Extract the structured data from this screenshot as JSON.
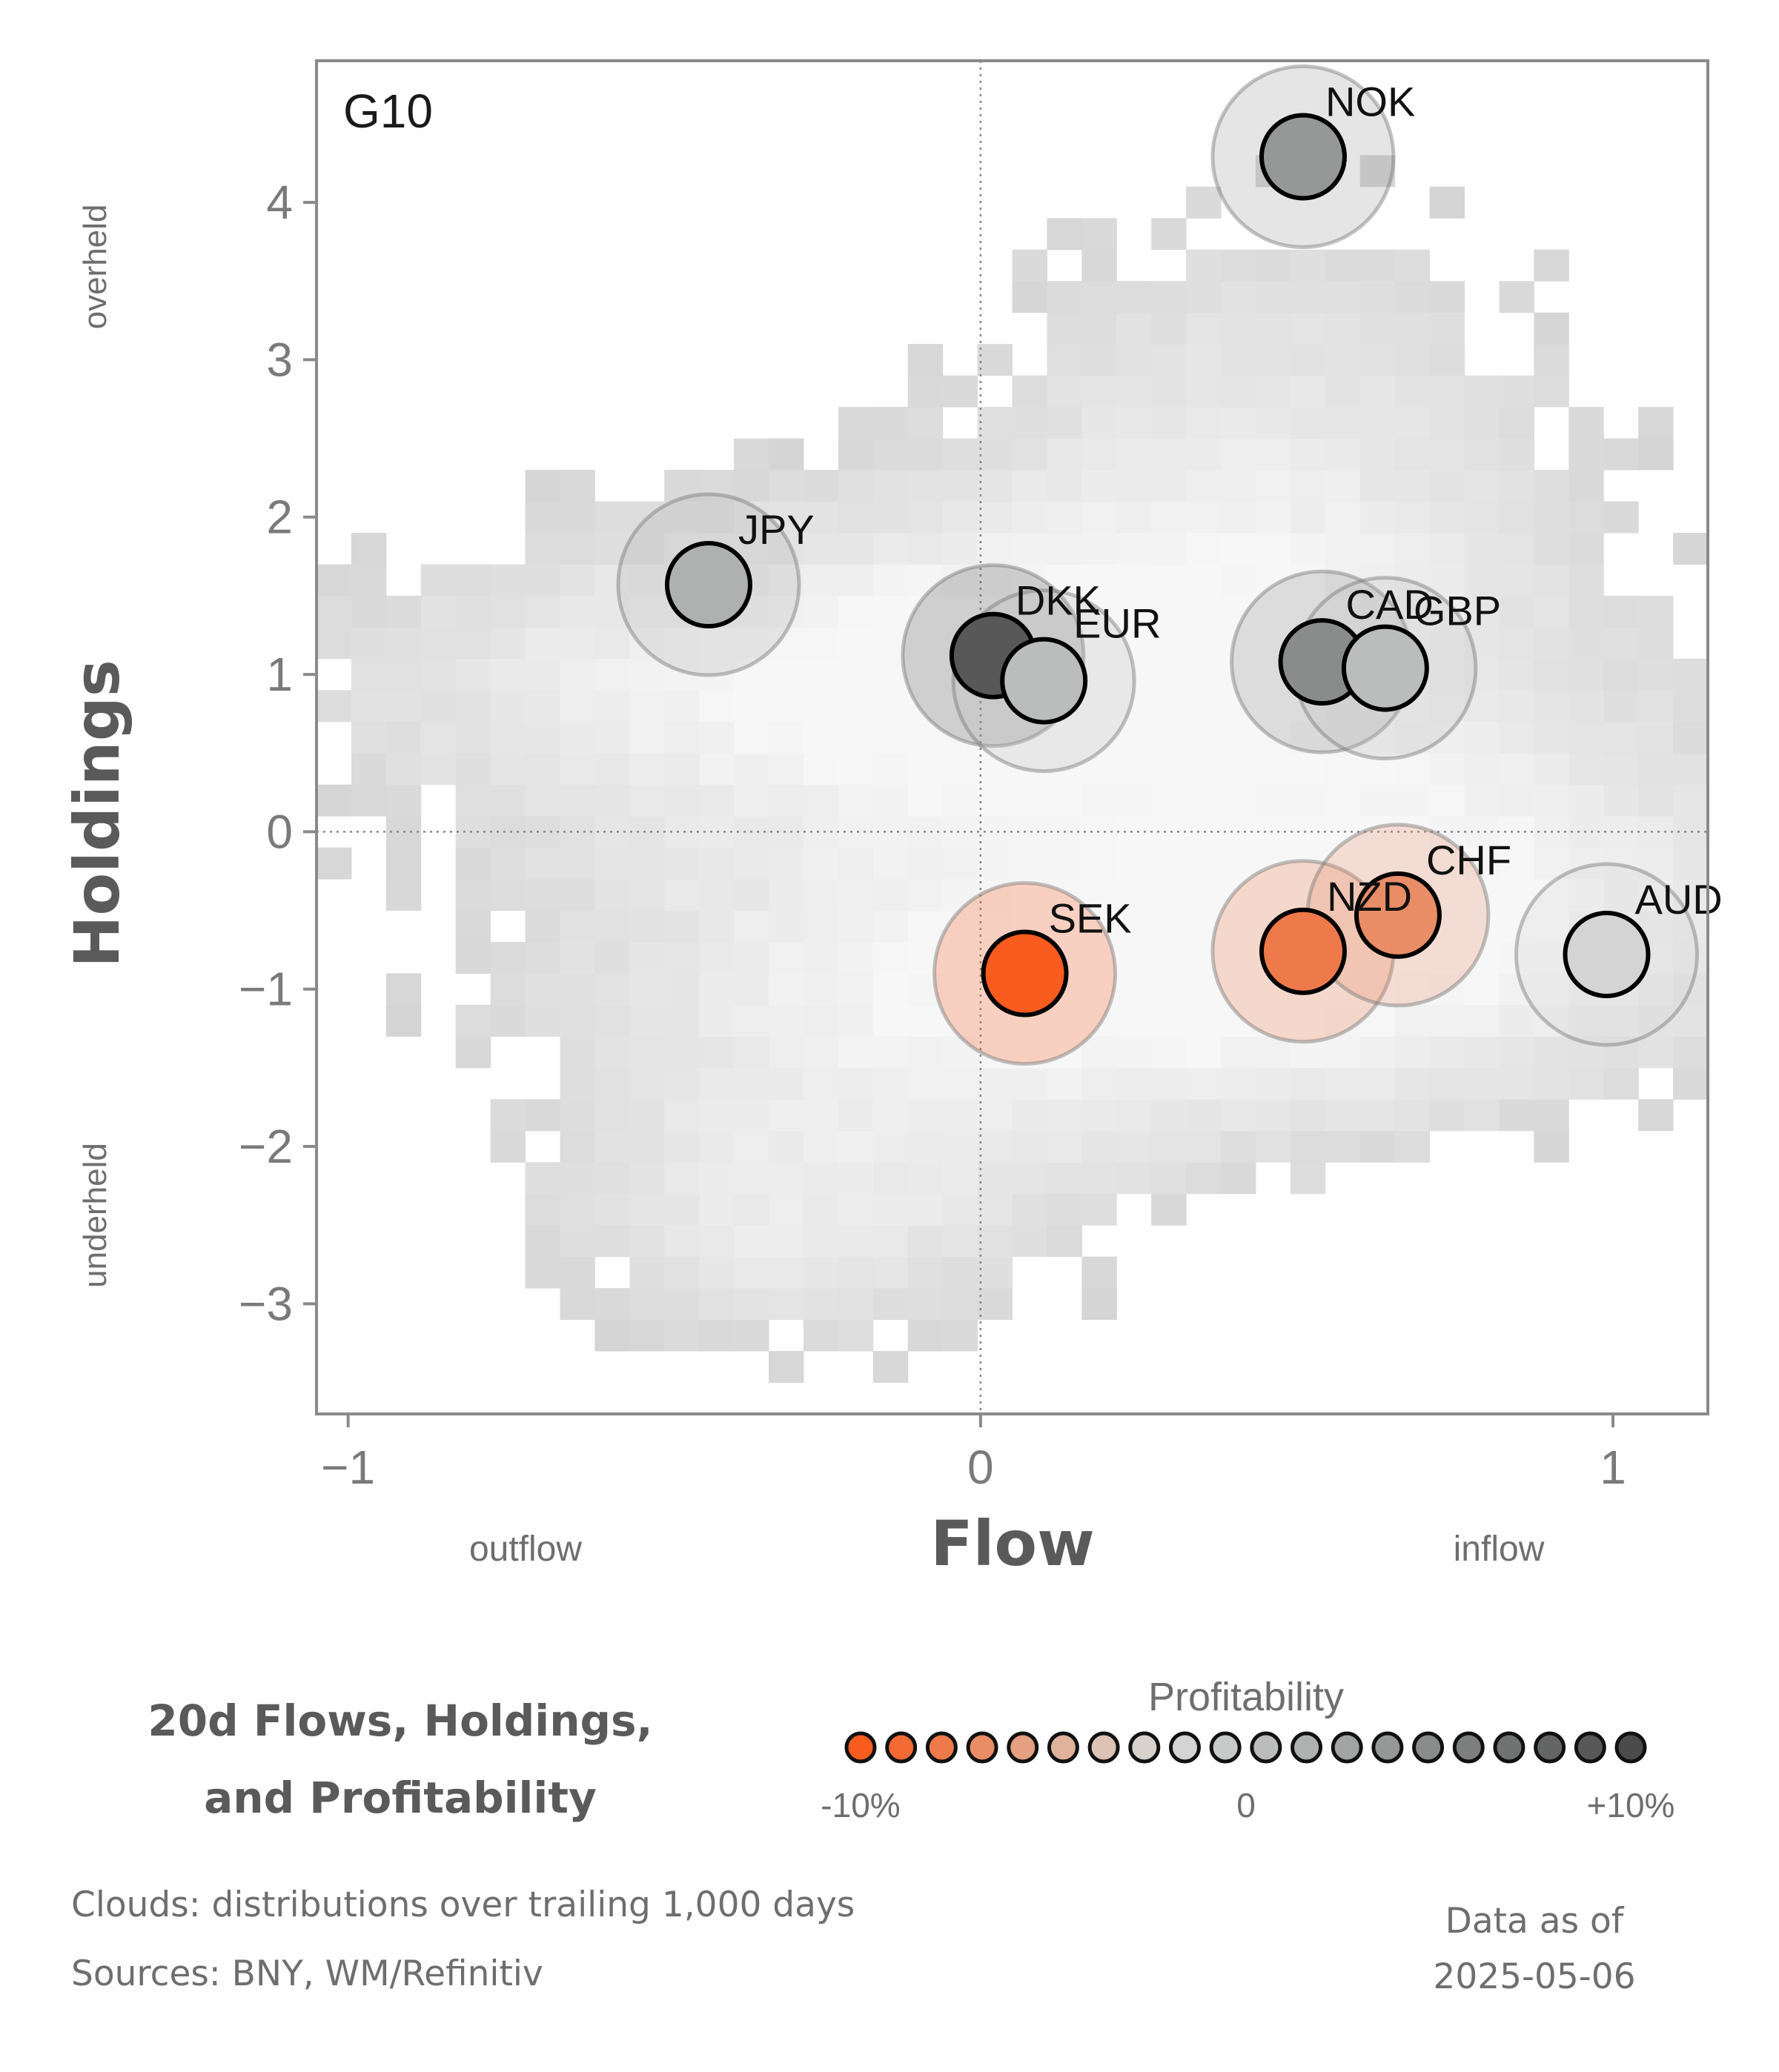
{
  "chart_data": {
    "type": "scatter",
    "panel_label": "G10",
    "xlabel": "Flow",
    "ylabel": "Holdings",
    "x_side_labels": {
      "left": "outflow",
      "right": "inflow"
    },
    "y_side_labels": {
      "top": "overheld",
      "bottom": "underheld"
    },
    "xlim": [
      -1.05,
      1.15
    ],
    "ylim": [
      -3.7,
      4.9
    ],
    "xticks": [
      -1,
      0,
      1
    ],
    "yticks": [
      -3,
      -2,
      -1,
      0,
      1,
      2,
      3,
      4
    ],
    "xtick_labels": [
      "−1",
      "0",
      "1"
    ],
    "ytick_labels": [
      "−3",
      "−2",
      "−1",
      "0",
      "1",
      "2",
      "3",
      "4"
    ],
    "reference_lines": {
      "x": 0,
      "y": 0,
      "style": "dotted"
    },
    "grid": false,
    "points": [
      {
        "label": "NOK",
        "x": 0.51,
        "y": 4.29,
        "profitability": 0.035
      },
      {
        "label": "JPY",
        "x": -0.43,
        "y": 1.57,
        "profitability": 0.02
      },
      {
        "label": "DKK",
        "x": 0.02,
        "y": 1.12,
        "profitability": 0.09
      },
      {
        "label": "EUR",
        "x": 0.1,
        "y": 0.96,
        "profitability": 0.007
      },
      {
        "label": "CAD",
        "x": 0.54,
        "y": 1.08,
        "profitability": 0.045
      },
      {
        "label": "GBP",
        "x": 0.64,
        "y": 1.04,
        "profitability": 0.01
      },
      {
        "label": "SEK",
        "x": 0.07,
        "y": -0.9,
        "profitability": -0.1
      },
      {
        "label": "NZD",
        "x": 0.51,
        "y": -0.76,
        "profitability": -0.075
      },
      {
        "label": "CHF",
        "x": 0.66,
        "y": -0.53,
        "profitability": -0.065
      },
      {
        "label": "AUD",
        "x": 0.99,
        "y": -0.78,
        "profitability": -0.015
      }
    ],
    "legend": {
      "title": "Profitability",
      "min_label": "-10%",
      "mid_label": "0",
      "max_label": "+10%",
      "colors": [
        "#fa5b1e",
        "#f36a34",
        "#ee7a4b",
        "#e98d66",
        "#e4a080",
        "#dfb29b",
        "#dcc3b5",
        "#d8d2cc",
        "#d4d4d4",
        "#c8c9c9",
        "#bbbcbc",
        "#afb0b0",
        "#a2a3a3",
        "#969797",
        "#8a8b8b",
        "#7d7e7e",
        "#717272",
        "#646565",
        "#585858",
        "#4b4b4b"
      ]
    },
    "colors": {
      "negative": "#fa5b1e",
      "neutral": "#d4d4d4",
      "positive": "#4b4b4b"
    }
  },
  "title": {
    "line1": "20d Flows, Holdings,",
    "line2": "and Profitability"
  },
  "footer": {
    "clouds": "Clouds:  distributions over trailing 1,000 days",
    "sources": "Sources:  BNY, WM/Refinitiv",
    "asof_label": "Data as of",
    "asof_date": "2025-05-06"
  }
}
